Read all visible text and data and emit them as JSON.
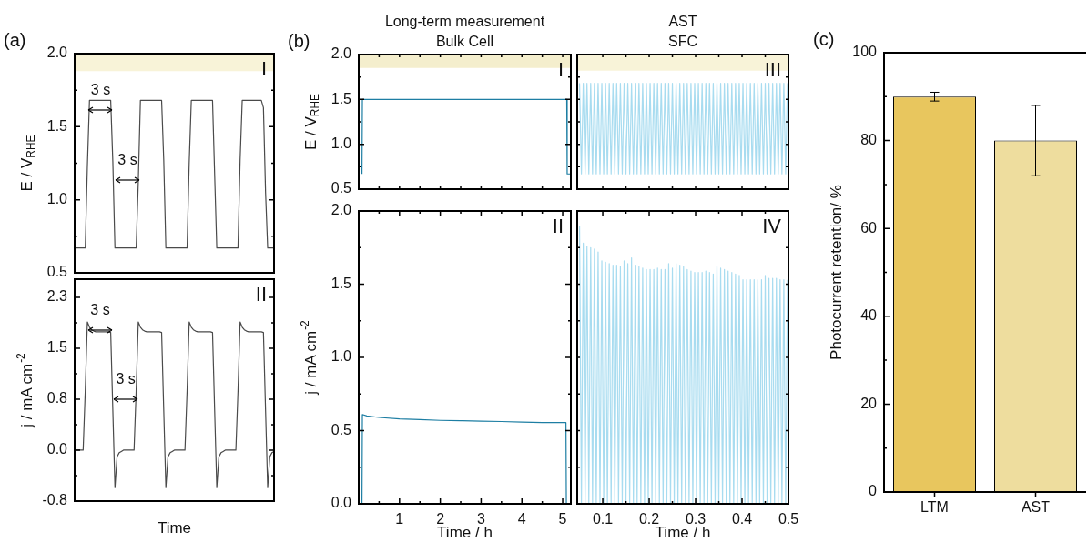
{
  "chart_data": [
    {
      "type": "line",
      "ylabel": "E / V$_{RHE}$",
      "categories": [
        null,
        null,
        null,
        null,
        null,
        null,
        null,
        null,
        null,
        null,
        null,
        null,
        null,
        null,
        null,
        null,
        null,
        null,
        null,
        null,
        null,
        null,
        null,
        null,
        null,
        null,
        null,
        null,
        null,
        null,
        null,
        null,
        null,
        null,
        null,
        null,
        null,
        null,
        null,
        null,
        null,
        null,
        null,
        null,
        null,
        null,
        null,
        null,
        null,
        null,
        null,
        null,
        null,
        null,
        null,
        null,
        null,
        null,
        null,
        null,
        null,
        null,
        null,
        null,
        null,
        null,
        null,
        null,
        null,
        null,
        null,
        null,
        null,
        null,
        null,
        null,
        null,
        null,
        null,
        null,
        null,
        null,
        null,
        null,
        null,
        null,
        null,
        null,
        null,
        null,
        null,
        null,
        null,
        null,
        null
      ],
      "series": [
        {
          "color": "#4a4a4a",
          "values": [
            0.67,
            0.67,
            0.67,
            0.67,
            0.67,
            0.67,
            1.23,
            1.68,
            1.68,
            1.68,
            1.68,
            1.68,
            1.68,
            1.68,
            1.68,
            1.68,
            1.68,
            1.68,
            1.26,
            0.67,
            0.67,
            0.67,
            0.67,
            0.67,
            0.67,
            0.67,
            0.67,
            0.67,
            0.67,
            0.67,
            1.12,
            1.68,
            1.68,
            1.68,
            1.68,
            1.68,
            1.68,
            1.68,
            1.68,
            1.68,
            1.68,
            1.68,
            1.27,
            0.67,
            0.67,
            0.67,
            0.67,
            0.67,
            0.67,
            0.67,
            0.67,
            0.67,
            0.67,
            0.67,
            1.25,
            1.68,
            1.68,
            1.68,
            1.68,
            1.68,
            1.68,
            1.68,
            1.68,
            1.68,
            1.68,
            1.68,
            1.17,
            0.67,
            0.67,
            0.67,
            0.67,
            0.67,
            0.67,
            0.67,
            0.67,
            0.67,
            0.67,
            0.67,
            1.27,
            1.68,
            1.68,
            1.68,
            1.68,
            1.68,
            1.68,
            1.68,
            1.68,
            1.68,
            1.68,
            1.63,
            1.05,
            0.67,
            0.67,
            0.67,
            0.67
          ]
        }
      ],
      "ylim": [
        0.5,
        2.0
      ],
      "yticks": [
        0.5,
        {
          "value": 0.75,
          "label": null
        },
        {
          "value": 1,
          "label": "1.0"
        },
        {
          "value": 1.25,
          "label": null
        },
        1.5,
        {
          "value": 1.75,
          "label": null
        },
        {
          "value": 2,
          "label": "2.0"
        }
      ],
      "tick_labels": "y",
      "bands": [
        {
          "axis": "y",
          "from": 1.88,
          "to": 2.0,
          "color": "#f8f3d8"
        }
      ],
      "annotations": [
        "(a)",
        "3 s",
        "3 s",
        "I"
      ]
    },
    {
      "type": "line",
      "ylabel": "j / mA cm$^{-2}$",
      "xlabel": "Time",
      "categories": [
        null,
        null,
        null,
        null,
        null,
        null,
        null,
        null,
        null,
        null,
        null,
        null,
        null,
        null,
        null,
        null,
        null,
        null,
        null,
        null,
        null,
        null,
        null,
        null,
        null,
        null,
        null,
        null,
        null,
        null,
        null,
        null,
        null,
        null,
        null,
        null,
        null,
        null,
        null,
        null,
        null,
        null,
        null,
        null,
        null,
        null,
        null,
        null,
        null,
        null,
        null,
        null,
        null,
        null,
        null,
        null,
        null,
        null,
        null,
        null,
        null,
        null,
        null,
        null,
        null,
        null,
        null,
        null,
        null,
        null,
        null,
        null,
        null,
        null,
        null,
        null,
        null,
        null,
        null,
        null,
        null,
        null,
        null,
        null,
        null,
        null,
        null,
        null,
        null,
        null,
        null,
        null,
        null,
        null,
        null
      ],
      "series": [
        {
          "color": "#4a4a4a",
          "values": [
            0,
            0,
            0,
            0,
            0,
            0.9,
            1.95,
            1.87,
            1.83,
            1.81,
            1.8,
            1.8,
            1.8,
            1.8,
            1.8,
            1.8,
            1.8,
            1.79,
            0.6,
            -0.57,
            -0.1,
            -0.04,
            -0.02,
            0,
            0,
            0,
            0,
            0,
            0,
            0.9,
            1.95,
            1.87,
            1.83,
            1.81,
            1.8,
            1.8,
            1.8,
            1.8,
            1.8,
            1.8,
            1.8,
            1.79,
            0.6,
            -0.57,
            -0.1,
            -0.04,
            -0.02,
            0,
            0,
            0,
            0,
            0,
            0,
            0.9,
            1.95,
            1.87,
            1.83,
            1.81,
            1.8,
            1.8,
            1.8,
            1.8,
            1.8,
            1.8,
            1.8,
            1.79,
            0.6,
            -0.57,
            -0.1,
            -0.04,
            -0.02,
            0,
            0,
            0,
            0,
            0,
            0,
            0.9,
            1.95,
            1.87,
            1.83,
            1.81,
            1.8,
            1.8,
            1.8,
            1.8,
            1.8,
            1.8,
            1.8,
            1.79,
            0.6,
            -0.57,
            -0.1,
            -0.04,
            -0.02
          ]
        }
      ],
      "ylim": [
        -0.775,
        2.6
      ],
      "yticks": [
        {
          "value": -0.775,
          "label": "-0.8"
        },
        {
          "value": -0.3875,
          "label": null
        },
        {
          "value": 0,
          "label": "0.0"
        },
        {
          "value": 0.3875,
          "label": null
        },
        {
          "value": 0.775,
          "label": "0.8"
        },
        {
          "value": 1.1625,
          "label": null
        },
        {
          "value": 1.55,
          "label": "1.5"
        },
        {
          "value": 1.9375,
          "label": null
        },
        {
          "value": 2.325,
          "label": "2.3"
        }
      ],
      "tick_labels": "y",
      "annotations": [
        "3 s",
        "3 s",
        "II"
      ]
    },
    {
      "type": "line",
      "title": "Long-term measurement\nBulk Cell",
      "ylabel": "E / V$_{RHE}$",
      "x": [
        0.08,
        0.09,
        5.1,
        5.11,
        5.2
      ],
      "series": [
        {
          "color": "#1d7ea3",
          "values": [
            0.67,
            1.5,
            1.5,
            0.67,
            0.67
          ]
        }
      ],
      "xlim": [
        0,
        5.2
      ],
      "xticks": [
        {
          "value": 0.5,
          "label": null
        },
        {
          "value": 1,
          "label": null
        },
        {
          "value": 1.5,
          "label": null
        },
        {
          "value": 2,
          "label": null
        },
        {
          "value": 2.5,
          "label": null
        },
        {
          "value": 3,
          "label": null
        },
        {
          "value": 3.5,
          "label": null
        },
        {
          "value": 4,
          "label": null
        },
        {
          "value": 4.5,
          "label": null
        },
        {
          "value": 5,
          "label": null
        }
      ],
      "ylim": [
        0.5,
        2.0
      ],
      "yticks": [
        0.5,
        {
          "value": 0.75,
          "label": null
        },
        {
          "value": 1,
          "label": "1.0"
        },
        {
          "value": 1.25,
          "label": null
        },
        1.5,
        {
          "value": 1.75,
          "label": null
        },
        {
          "value": 2,
          "label": "2.0"
        }
      ],
      "tick_labels": "y",
      "bands": [
        {
          "axis": "y",
          "from": 1.85,
          "to": 2.0,
          "color": "#f4eecd"
        }
      ],
      "annotations": [
        "(b)",
        "I"
      ]
    },
    {
      "type": "line",
      "title": "AST\nSFC",
      "x": [
        0.05,
        0.054,
        0.058,
        0.062,
        0.066,
        0.07,
        0.074,
        0.078,
        0.082,
        0.086,
        0.09,
        0.094,
        0.098,
        0.102,
        0.106,
        0.11,
        0.114,
        0.118,
        0.122,
        0.126,
        0.13,
        0.134,
        0.138,
        0.142,
        0.146,
        0.15,
        0.154,
        0.158,
        0.162,
        0.166,
        0.17,
        0.174,
        0.178,
        0.182,
        0.186,
        0.19,
        0.194,
        0.198,
        0.202,
        0.206,
        0.21,
        0.214,
        0.218,
        0.222,
        0.226,
        0.23,
        0.234,
        0.238,
        0.242,
        0.246,
        0.25,
        0.254,
        0.258,
        0.262,
        0.266,
        0.27,
        0.274,
        0.278,
        0.282,
        0.286,
        0.29,
        0.294,
        0.298,
        0.302,
        0.306,
        0.31,
        0.314,
        0.318,
        0.322,
        0.326,
        0.33,
        0.334,
        0.338,
        0.342,
        0.346,
        0.35,
        0.354,
        0.358,
        0.362,
        0.366,
        0.37,
        0.374,
        0.378,
        0.382,
        0.386,
        0.39,
        0.394,
        0.398,
        0.402,
        0.406,
        0.41,
        0.414,
        0.418,
        0.422,
        0.426,
        0.43,
        0.434,
        0.438,
        0.442,
        0.446,
        0.45,
        0.454,
        0.458,
        0.462,
        0.466,
        0.47,
        0.474,
        0.478,
        0.482,
        0.486,
        0.49,
        0.494,
        0.498
      ],
      "series": [
        {
          "color": "#a8dcf0",
          "values": [
            1.68,
            0.67,
            1.68,
            0.67,
            1.68,
            0.67,
            1.68,
            0.67,
            1.68,
            0.67,
            1.68,
            0.67,
            1.68,
            0.67,
            1.68,
            0.67,
            1.68,
            0.67,
            1.68,
            0.67,
            1.68,
            0.67,
            1.68,
            0.67,
            1.68,
            0.67,
            1.68,
            0.67,
            1.68,
            0.67,
            1.68,
            0.67,
            1.68,
            0.67,
            1.68,
            0.67,
            1.68,
            0.67,
            1.68,
            0.67,
            1.68,
            0.67,
            1.68,
            0.67,
            1.68,
            0.67,
            1.68,
            0.67,
            1.68,
            0.67,
            1.68,
            0.67,
            1.68,
            0.67,
            1.68,
            0.67,
            1.68,
            0.67,
            1.68,
            0.67,
            1.68,
            0.67,
            1.68,
            0.67,
            1.68,
            0.67,
            1.68,
            0.67,
            1.68,
            0.67,
            1.68,
            0.67,
            1.68,
            0.67,
            1.68,
            0.67,
            1.68,
            0.67,
            1.68,
            0.67,
            1.68,
            0.67,
            1.68,
            0.67,
            1.68,
            0.67,
            1.68,
            0.67,
            1.68,
            0.67,
            1.68,
            0.67,
            1.68,
            0.67,
            1.68,
            0.67,
            1.68,
            0.67,
            1.68,
            0.67,
            1.68,
            0.67,
            1.68,
            0.67,
            1.68,
            0.67,
            1.68,
            0.67,
            1.68,
            0.67,
            1.68,
            0.67,
            1.68
          ]
        }
      ],
      "xlim": [
        0.045,
        0.5
      ],
      "xticks": [
        {
          "value": 0.1,
          "label": null
        },
        {
          "value": 0.15,
          "label": null
        },
        {
          "value": 0.2,
          "label": null
        },
        {
          "value": 0.25,
          "label": null
        },
        {
          "value": 0.3,
          "label": null
        },
        {
          "value": 0.35,
          "label": null
        },
        {
          "value": 0.4,
          "label": null
        },
        {
          "value": 0.45,
          "label": null
        },
        {
          "value": 0.5,
          "label": null
        }
      ],
      "ylim": [
        0.5,
        2.0
      ],
      "yticks": [
        {
          "value": 0.5,
          "label": null
        },
        {
          "value": 0.75,
          "label": null
        },
        {
          "value": 1,
          "label": null
        },
        {
          "value": 1.25,
          "label": null
        },
        {
          "value": 1.5,
          "label": null
        },
        {
          "value": 1.75,
          "label": null
        },
        {
          "value": 2,
          "label": null
        }
      ],
      "tick_labels": false,
      "bands": [
        {
          "axis": "y",
          "from": 1.82,
          "to": 2.0,
          "color": "#f8f3d8"
        }
      ],
      "annotations": [
        "III"
      ]
    },
    {
      "type": "line",
      "ylabel": "j / mA cm$^{-2}$",
      "xlabel": "Time / h",
      "x": [
        0.08,
        0.09,
        0.2,
        0.5,
        1,
        1.5,
        2,
        2.5,
        3,
        3.5,
        4,
        4.5,
        5,
        5.08,
        5.09
      ],
      "series": [
        {
          "color": "#1d7ea3",
          "values": [
            0,
            0.61,
            0.6,
            0.59,
            0.58,
            0.575,
            0.57,
            0.568,
            0.565,
            0.562,
            0.558,
            0.555,
            0.555,
            0.555,
            0
          ]
        }
      ],
      "xlim": [
        0,
        5.2
      ],
      "xticks": [
        {
          "value": 0.5,
          "label": null
        },
        1,
        {
          "value": 1.5,
          "label": null
        },
        2,
        {
          "value": 2.5,
          "label": null
        },
        3,
        {
          "value": 3.5,
          "label": null
        },
        4,
        {
          "value": 4.5,
          "label": null
        },
        5
      ],
      "ylim": [
        0,
        2.0
      ],
      "yticks": [
        {
          "value": 0,
          "label": "0.0"
        },
        {
          "value": 0.25,
          "label": null
        },
        0.5,
        {
          "value": 0.75,
          "label": null
        },
        {
          "value": 1,
          "label": "1.0"
        },
        {
          "value": 1.25,
          "label": null
        },
        1.5,
        {
          "value": 1.75,
          "label": null
        },
        {
          "value": 2,
          "label": "2.0"
        }
      ],
      "annotations": [
        "II"
      ]
    },
    {
      "type": "line",
      "xlabel": "Time / h",
      "x": [
        0.05,
        0.054,
        0.058,
        0.062,
        0.066,
        0.07,
        0.074,
        0.078,
        0.082,
        0.086,
        0.09,
        0.094,
        0.098,
        0.102,
        0.106,
        0.11,
        0.114,
        0.118,
        0.122,
        0.126,
        0.13,
        0.134,
        0.138,
        0.142,
        0.146,
        0.15,
        0.154,
        0.158,
        0.162,
        0.166,
        0.17,
        0.174,
        0.178,
        0.182,
        0.186,
        0.19,
        0.194,
        0.198,
        0.202,
        0.206,
        0.21,
        0.214,
        0.218,
        0.222,
        0.226,
        0.23,
        0.234,
        0.238,
        0.242,
        0.246,
        0.25,
        0.254,
        0.258,
        0.262,
        0.266,
        0.27,
        0.274,
        0.278,
        0.282,
        0.286,
        0.29,
        0.294,
        0.298,
        0.302,
        0.306,
        0.31,
        0.314,
        0.318,
        0.322,
        0.326,
        0.33,
        0.334,
        0.338,
        0.342,
        0.346,
        0.35,
        0.354,
        0.358,
        0.362,
        0.366,
        0.37,
        0.374,
        0.378,
        0.382,
        0.386,
        0.39,
        0.394,
        0.398,
        0.402,
        0.406,
        0.41,
        0.414,
        0.418,
        0.422,
        0.426,
        0.43,
        0.434,
        0.438,
        0.442,
        0.446,
        0.45,
        0.454,
        0.458,
        0.462,
        0.466,
        0.47,
        0.474,
        0.478,
        0.482,
        0.486,
        0.49,
        0.494,
        0.498
      ],
      "series": [
        {
          "color": "#a8dcf0",
          "values": [
            1.9,
            0,
            1.78,
            0,
            1.76,
            0,
            1.75,
            0,
            1.74,
            0,
            1.72,
            0,
            1.66,
            0,
            1.65,
            0,
            1.64,
            0,
            1.63,
            0,
            1.63,
            0,
            1.62,
            0,
            1.66,
            0,
            1.64,
            0,
            1.68,
            0,
            1.63,
            0,
            1.62,
            0,
            1.61,
            0,
            1.6,
            0,
            1.6,
            0,
            1.6,
            0,
            1.61,
            0,
            1.6,
            0,
            1.6,
            0,
            1.64,
            0,
            1.61,
            0,
            1.64,
            0,
            1.63,
            0,
            1.62,
            0,
            1.6,
            0,
            1.59,
            0,
            1.58,
            0,
            1.58,
            0,
            1.58,
            0,
            1.59,
            0,
            1.58,
            0,
            1.57,
            0,
            1.62,
            0,
            1.61,
            0,
            1.6,
            0,
            1.59,
            0,
            1.58,
            0,
            1.57,
            0,
            1.56,
            0,
            1.53,
            0,
            1.53,
            0,
            1.53,
            0,
            1.53,
            0,
            1.53,
            0,
            1.53,
            0,
            1.56,
            0,
            1.54,
            0,
            1.54,
            0,
            1.54,
            0,
            1.53,
            0,
            1.53,
            0,
            1.53
          ]
        }
      ],
      "xlim": [
        0.045,
        0.5
      ],
      "xticks": [
        0.1,
        {
          "value": 0.15,
          "label": null
        },
        0.2,
        {
          "value": 0.25,
          "label": null
        },
        0.3,
        {
          "value": 0.35,
          "label": null
        },
        0.4,
        {
          "value": 0.45,
          "label": null
        },
        0.5
      ],
      "ylim": [
        0,
        2.0
      ],
      "yticks": [
        {
          "value": 0,
          "label": null
        },
        {
          "value": 0.25,
          "label": null
        },
        {
          "value": 0.5,
          "label": null
        },
        {
          "value": 0.75,
          "label": null
        },
        {
          "value": 1,
          "label": null
        },
        {
          "value": 1.25,
          "label": null
        },
        {
          "value": 1.5,
          "label": null
        },
        {
          "value": 1.75,
          "label": null
        },
        {
          "value": 2,
          "label": null
        }
      ],
      "tick_labels": "x",
      "annotations": [
        "IV"
      ]
    },
    {
      "type": "bar",
      "ylabel": "Photocurrent retention/ %",
      "categories": [
        "LTM",
        "AST"
      ],
      "values": [
        90,
        80
      ],
      "colors": [
        "#e8c65e",
        "#eedd9e"
      ],
      "errors": [
        [
          89,
          91
        ],
        [
          72,
          88
        ]
      ],
      "ylim": [
        0,
        100
      ],
      "yticks": [
        0,
        {
          "value": 10,
          "label": null
        },
        20,
        {
          "value": 30,
          "label": null
        },
        40,
        {
          "value": 50,
          "label": null
        },
        60,
        {
          "value": 70,
          "label": null
        },
        80,
        {
          "value": 90,
          "label": null
        },
        100
      ],
      "annotations": [
        "(c)"
      ]
    }
  ]
}
